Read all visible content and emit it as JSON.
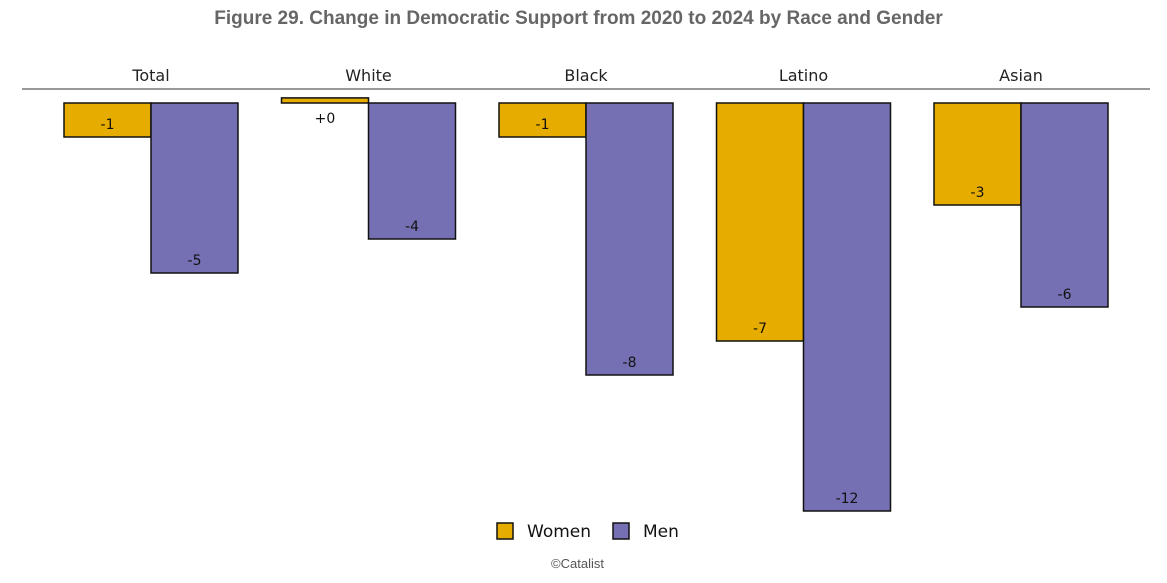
{
  "chart_data": {
    "type": "bar",
    "title": "Figure 29. Change in Democratic Support from 2020 to 2024 by Race and Gender",
    "categories": [
      "Total",
      "White",
      "Black",
      "Latino",
      "Asian"
    ],
    "series": [
      {
        "name": "Women",
        "color": "#e6ac00",
        "values": [
          -1,
          0.15,
          -1,
          -7,
          -3
        ],
        "labels": [
          "-1",
          "+0",
          "-1",
          "-7",
          "-3"
        ]
      },
      {
        "name": "Men",
        "color": "#7570b3",
        "values": [
          -5,
          -4,
          -8,
          -12,
          -6
        ],
        "labels": [
          "-5",
          "-4",
          "-8",
          "-12",
          "-6"
        ]
      }
    ],
    "ylim": [
      -12,
      0
    ],
    "grid": false,
    "legend_position": "bottom-center"
  },
  "footer": {
    "credit": "©Catalist"
  }
}
